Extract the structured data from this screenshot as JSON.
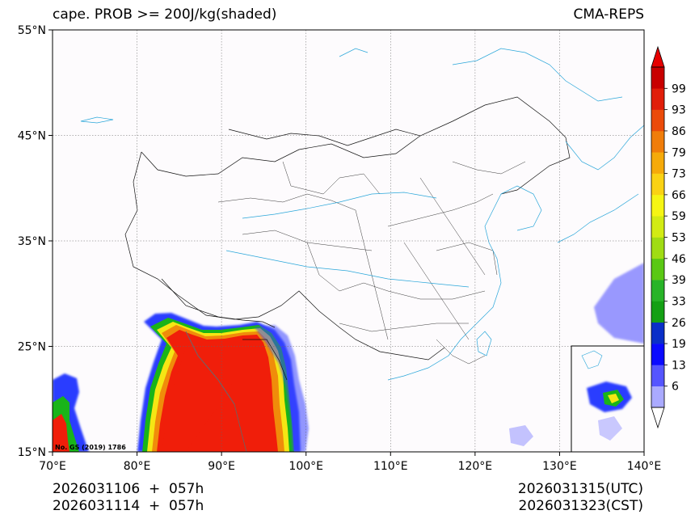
{
  "header": {
    "title": "cape. PROB >= 200J/kg(shaded)",
    "model": "CMA-REPS"
  },
  "map": {
    "lon_range": [
      70,
      140
    ],
    "lat_range": [
      15,
      55
    ],
    "lon_ticks": [
      {
        "value": 70,
        "label": "70°E"
      },
      {
        "value": 80,
        "label": "80°E"
      },
      {
        "value": 90,
        "label": "90°E"
      },
      {
        "value": 100,
        "label": "100°E"
      },
      {
        "value": 110,
        "label": "110°E"
      },
      {
        "value": 120,
        "label": "120°E"
      },
      {
        "value": 130,
        "label": "130°E"
      },
      {
        "value": 140,
        "label": "140°E"
      }
    ],
    "lat_ticks": [
      {
        "value": 55,
        "label": "55°N"
      },
      {
        "value": 45,
        "label": "45°N"
      },
      {
        "value": 35,
        "label": "35°N"
      },
      {
        "value": 25,
        "label": "25°N"
      },
      {
        "value": 15,
        "label": "15°N"
      }
    ],
    "map_number": "No. GS (2019) 1786"
  },
  "colorbar": {
    "levels": [
      "6",
      "13",
      "19",
      "26",
      "33",
      "39",
      "46",
      "53",
      "59",
      "66",
      "73",
      "79",
      "86",
      "93",
      "99"
    ],
    "colors": [
      "#aaaaff",
      "#5555ff",
      "#0a0aff",
      "#0a2fc8",
      "#14a014",
      "#28b428",
      "#5ac814",
      "#a0dc14",
      "#d2eb14",
      "#f5f514",
      "#fad214",
      "#f5aa0a",
      "#f07d0a",
      "#eb4b0a",
      "#e11e0a",
      "#c80000"
    ],
    "under_color": "#ffffff",
    "over_color": "#e60000"
  },
  "footer": {
    "init_line1": "2026031106  +  057h",
    "init_line2": "2026031114  +  057h",
    "valid_utc": "2026031315(UTC)",
    "valid_cst": "2026031323(CST)"
  }
}
